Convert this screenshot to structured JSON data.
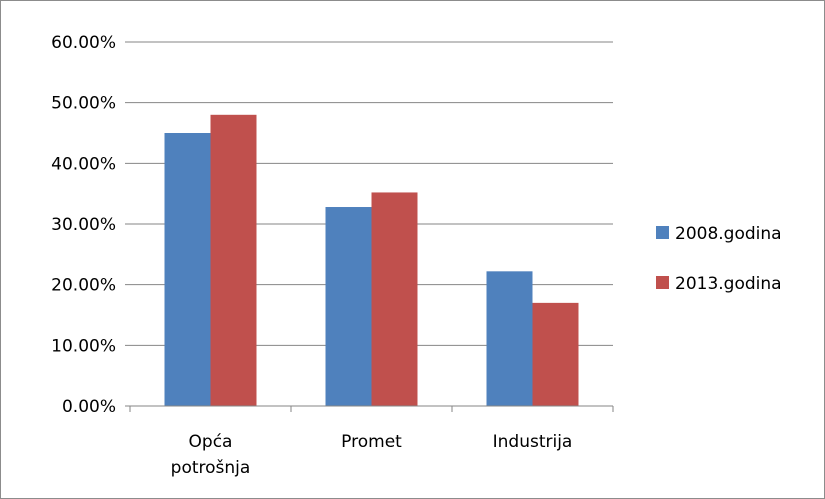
{
  "chart_data": {
    "type": "bar",
    "title": "",
    "xlabel": "",
    "ylabel": "",
    "categories": [
      [
        "Opća",
        "potrošnja"
      ],
      [
        "Promet"
      ],
      [
        "Industrija"
      ]
    ],
    "series": [
      {
        "name": "2008.godina",
        "color": "#4f81bd",
        "values": [
          0.45,
          0.328,
          0.222
        ]
      },
      {
        "name": "2013.godina",
        "color": "#c0504d",
        "values": [
          0.48,
          0.352,
          0.17
        ]
      }
    ],
    "ylim": [
      0,
      0.6
    ],
    "yticks": [
      {
        "value": 0.0,
        "label": "0.00%"
      },
      {
        "value": 0.1,
        "label": "10.00%"
      },
      {
        "value": 0.2,
        "label": "20.00%"
      },
      {
        "value": 0.3,
        "label": "30.00%"
      },
      {
        "value": 0.4,
        "label": "40.00%"
      },
      {
        "value": 0.5,
        "label": "50.00%"
      },
      {
        "value": 0.6,
        "label": "60.00%"
      }
    ],
    "grid": true,
    "gridline_color": "#868686",
    "legend": "right"
  }
}
